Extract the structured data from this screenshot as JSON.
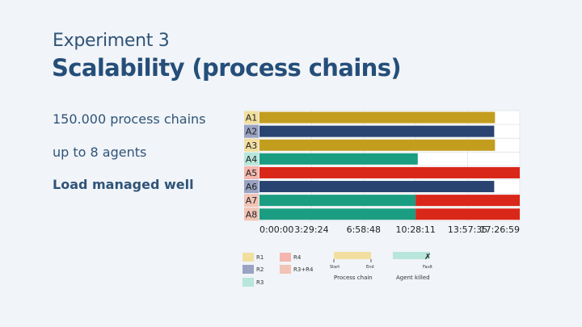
{
  "slide": {
    "subtitle": "Experiment 3",
    "title": "Scalability (process chains)",
    "bullets": [
      "150.000 process chains",
      "up to 8 agents",
      "Load managed well"
    ]
  },
  "colors": {
    "R1": "#f2dfa0",
    "R2": "#9aa3c2",
    "R3": "#b8e6da",
    "R4": "#f4b6ae",
    "R3R4": "#f1c4b6",
    "gold": "#c29d1e",
    "navy": "#2a4472",
    "teal": "#1b9d82",
    "red": "#d9271a",
    "grid": "#dfe3ea"
  },
  "chart_data": {
    "type": "gantt",
    "x_ticks": [
      "0:00:00",
      "3:29:24",
      "6:58:48",
      "10:28:11",
      "13:57:35",
      "17:26:59"
    ],
    "xlim_seconds": [
      0,
      62819
    ],
    "tick_seconds": [
      0,
      12564,
      25128,
      37691,
      50255,
      62819
    ],
    "agents": [
      {
        "label": "A1",
        "label_color": "#f2dfa0",
        "segments": [
          {
            "end": 56840,
            "color": "gold"
          }
        ]
      },
      {
        "label": "A2",
        "label_color": "#9aa3c2",
        "segments": [
          {
            "end": 56650,
            "color": "navy"
          }
        ]
      },
      {
        "label": "A3",
        "label_color": "#f2dfa0",
        "segments": [
          {
            "end": 56840,
            "color": "gold"
          }
        ]
      },
      {
        "label": "A4",
        "label_color": "#b8e6da",
        "segments": [
          {
            "end": 38200,
            "color": "teal"
          }
        ]
      },
      {
        "label": "A5",
        "label_color": "#f4b6ae",
        "segments": [
          {
            "end": 62819,
            "color": "red"
          }
        ]
      },
      {
        "label": "A6",
        "label_color": "#9aa3c2",
        "segments": [
          {
            "end": 56650,
            "color": "navy"
          }
        ]
      },
      {
        "label": "A7",
        "label_color": "#f1c4b6",
        "segments": [
          {
            "end": 37691,
            "color": "teal"
          },
          {
            "end": 62819,
            "color": "red"
          }
        ]
      },
      {
        "label": "A8",
        "label_color": "#f1c4b6",
        "segments": [
          {
            "end": 37691,
            "color": "teal"
          },
          {
            "end": 62819,
            "color": "red"
          }
        ]
      }
    ],
    "legend": {
      "items": [
        {
          "label": "R1",
          "color": "R1"
        },
        {
          "label": "R2",
          "color": "R2"
        },
        {
          "label": "R3",
          "color": "R3"
        },
        {
          "label": "R4",
          "color": "R4"
        },
        {
          "label": "R3+R4",
          "color": "R3R4"
        }
      ],
      "process_chain": {
        "start": "Start",
        "end": "End",
        "caption": "Process chain"
      },
      "agent_killed": {
        "fault": "Fault",
        "caption": "Agent killed"
      }
    }
  }
}
